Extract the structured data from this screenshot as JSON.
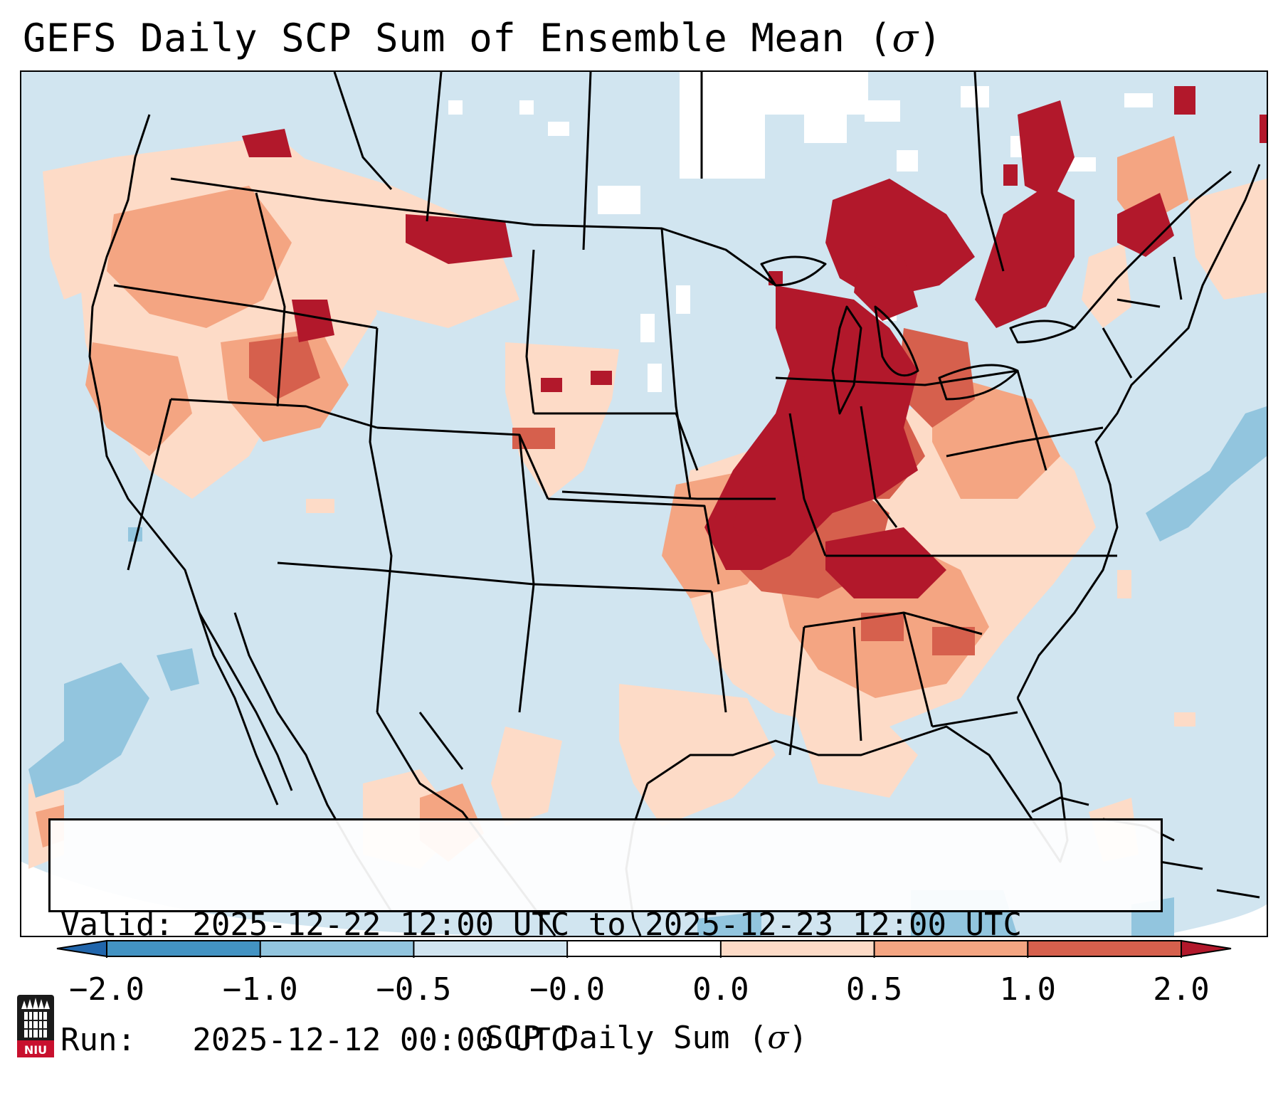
{
  "title": {
    "text": "GEFS Daily SCP Sum of Ensemble Mean (",
    "symbol": "σ",
    "close": ")"
  },
  "info_box": {
    "valid_line": "Valid: 2025-12-22 12:00 UTC to 2025-12-23 12:00 UTC",
    "run_line": "Run:   2025-12-12 00:00 UTC"
  },
  "colorbar": {
    "label_text": "SCP Daily Sum (",
    "label_symbol": "σ",
    "label_close": ")",
    "ticks": [
      "−2.0",
      "−1.0",
      "−0.5",
      "−0.0",
      "0.0",
      "0.5",
      "1.0",
      "2.0"
    ],
    "bins": [
      {
        "range": "< -2.0",
        "color": "#2166ac"
      },
      {
        "range": "-2.0 to -1.0",
        "color": "#4393c3"
      },
      {
        "range": "-1.0 to -0.5",
        "color": "#92c5de"
      },
      {
        "range": "-0.5 to -0.0",
        "color": "#d1e5f0"
      },
      {
        "range": "-0.0 to 0.0",
        "color": "#ffffff"
      },
      {
        "range": "0.0 to 0.5",
        "color": "#fddbc7"
      },
      {
        "range": "0.5 to 1.0",
        "color": "#f4a582"
      },
      {
        "range": "1.0 to 2.0",
        "color": "#d6604d"
      },
      {
        "range": "> 2.0",
        "color": "#b2182b"
      }
    ]
  },
  "map": {
    "projection": "Lambert Conformal (CONUS)",
    "background_color": "#d1e5f0",
    "features": [
      "Strong positive SCP anomaly (> 2.0 sigma) over Ohio and Tennessee Valleys, Indiana, Michigan, Kentucky",
      "Strong positive anomaly over southern Ontario and Quebec",
      "Moderate positive anomaly across the Southeast, Carolinas, Georgia, Arkansas",
      "Weak positive anomaly scattered across the Pacific Northwest and Great Basin",
      "Weak negative anomaly offshore Atlantic and eastern Pacific"
    ]
  },
  "logo": {
    "name": "NIU",
    "text": "NIU"
  }
}
